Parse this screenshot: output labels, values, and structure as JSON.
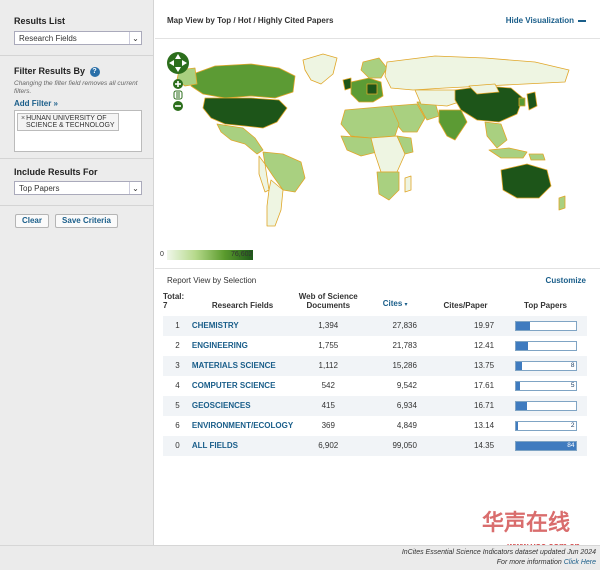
{
  "sidebar": {
    "results_list_title": "Results List",
    "results_list_value": "Research Fields",
    "filter_title": "Filter Results By",
    "filter_hint": "Changing the filter field removes all current filters.",
    "add_filter": "Add Filter »",
    "filter_chip_1": "HUNAN UNIVERSITY OF",
    "filter_chip_2": "SCIENCE & TECHNOLOGY",
    "include_title": "Include Results For",
    "include_value": "Top Papers",
    "clear_label": "Clear",
    "save_label": "Save Criteria"
  },
  "map": {
    "title": "Map View by Top / Hot / Highly Cited Papers",
    "hide_label": "Hide Visualization",
    "legend_min": "0",
    "legend_max": "76,602",
    "colors": {
      "ocean": "#ffffff",
      "border": "#e0a628",
      "light": "#eef5e2",
      "mid": "#a9d080",
      "strong": "#5c9b34",
      "dark": "#1d5519"
    }
  },
  "report": {
    "title": "Report View by Selection",
    "customize_label": "Customize",
    "total_label": "Total:",
    "total_value": "7",
    "headers": {
      "fields": "Research Fields",
      "docs": "Web of Science Documents",
      "cites": "Cites",
      "cpp": "Cites/Paper",
      "top": "Top Papers"
    },
    "rows": [
      {
        "rank": "1",
        "field": "CHEMISTRY",
        "docs": "1,394",
        "cites": "27,836",
        "cpp": "19.97",
        "top": "19",
        "top_fraction": 0.226
      },
      {
        "rank": "2",
        "field": "ENGINEERING",
        "docs": "1,755",
        "cites": "21,783",
        "cpp": "12.41",
        "top": "17",
        "top_fraction": 0.202
      },
      {
        "rank": "3",
        "field": "MATERIALS SCIENCE",
        "docs": "1,112",
        "cites": "15,286",
        "cpp": "13.75",
        "top": "8",
        "top_fraction": 0.095
      },
      {
        "rank": "4",
        "field": "COMPUTER SCIENCE",
        "docs": "542",
        "cites": "9,542",
        "cpp": "17.61",
        "top": "5",
        "top_fraction": 0.06
      },
      {
        "rank": "5",
        "field": "GEOSCIENCES",
        "docs": "415",
        "cites": "6,934",
        "cpp": "16.71",
        "top": "15",
        "top_fraction": 0.179
      },
      {
        "rank": "6",
        "field": "ENVIRONMENT/ECOLOGY",
        "docs": "369",
        "cites": "4,849",
        "cpp": "13.14",
        "top": "2",
        "top_fraction": 0.024
      },
      {
        "rank": "0",
        "field": "ALL FIELDS",
        "docs": "6,902",
        "cites": "99,050",
        "cpp": "14.35",
        "top": "84",
        "top_fraction": 1.0
      }
    ]
  },
  "footer": {
    "line1": "InCites Essential Science Indicators dataset updated Jun 2024",
    "line2_prefix": "For more information",
    "line2_link": "Click Here",
    "watermark": "华声在线",
    "watermark_url": "www.voc.com.cn"
  }
}
